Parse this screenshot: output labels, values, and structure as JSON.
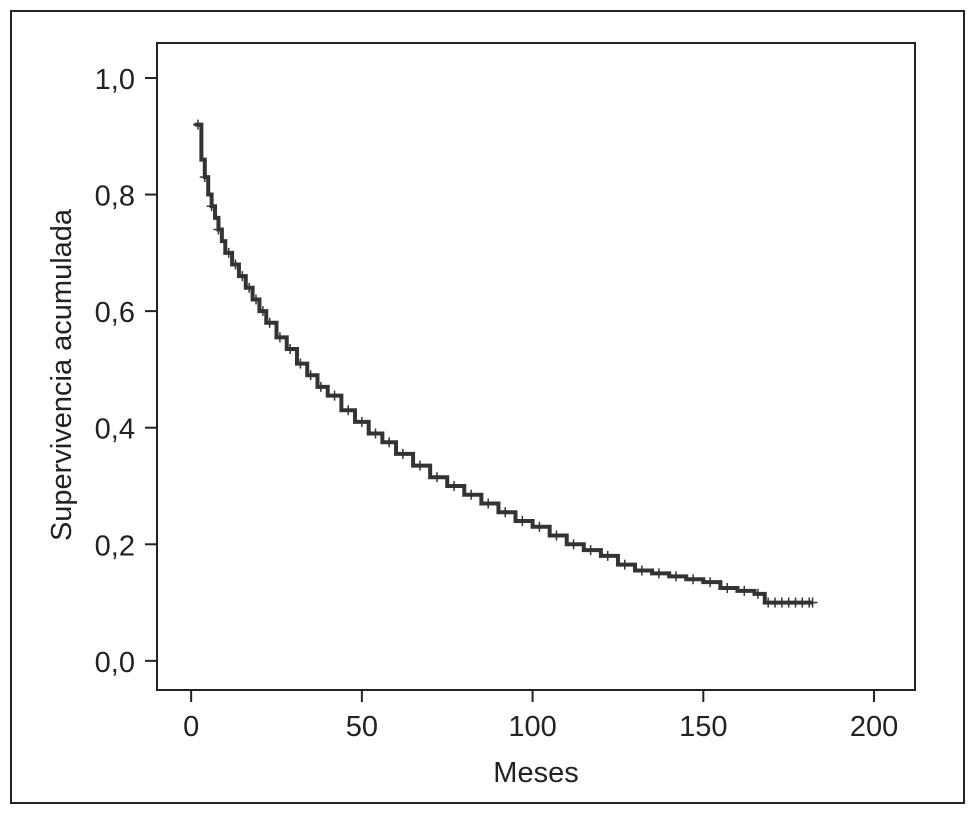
{
  "chart_data": {
    "type": "line",
    "subtype": "kaplan-meier-survival-curve",
    "title": "",
    "xlabel": "Meses",
    "ylabel": "Supervivencia acumulada",
    "xlim": [
      -10,
      212
    ],
    "ylim": [
      -0.05,
      1.06
    ],
    "xticks": [
      0,
      50,
      100,
      150,
      200
    ],
    "xtick_labels": [
      "0",
      "50",
      "100",
      "150",
      "200"
    ],
    "yticks": [
      0.0,
      0.2,
      0.4,
      0.6,
      0.8,
      1.0
    ],
    "ytick_labels": [
      "0,0",
      "0,2",
      "0,4",
      "0,6",
      "0,8",
      "1,0"
    ],
    "grid": false,
    "legend": "none",
    "line_color": "#333333",
    "censor_marker": "+",
    "series": [
      {
        "style": "step",
        "x": [
          1,
          3,
          4,
          5,
          6,
          7,
          8,
          9,
          10,
          12,
          14,
          16,
          18,
          20,
          22,
          25,
          28,
          31,
          34,
          37,
          40,
          44,
          48,
          52,
          56,
          60,
          65,
          70,
          75,
          80,
          85,
          90,
          95,
          100,
          105,
          110,
          115,
          120,
          125,
          130,
          135,
          140,
          145,
          150,
          155,
          160,
          165,
          168,
          172,
          176,
          180,
          182
        ],
        "y": [
          0.92,
          0.86,
          0.83,
          0.8,
          0.78,
          0.76,
          0.74,
          0.72,
          0.7,
          0.68,
          0.66,
          0.64,
          0.62,
          0.6,
          0.58,
          0.555,
          0.535,
          0.51,
          0.49,
          0.47,
          0.455,
          0.43,
          0.41,
          0.39,
          0.375,
          0.355,
          0.335,
          0.315,
          0.3,
          0.285,
          0.27,
          0.255,
          0.24,
          0.23,
          0.215,
          0.2,
          0.19,
          0.18,
          0.165,
          0.155,
          0.15,
          0.145,
          0.14,
          0.135,
          0.125,
          0.12,
          0.115,
          0.1,
          0.1,
          0.1,
          0.1,
          0.1
        ]
      }
    ],
    "censor_times": [
      2,
      4,
      6,
      8,
      11,
      13,
      15,
      17,
      19,
      21,
      23,
      26,
      29,
      32,
      35,
      38,
      42,
      46,
      50,
      54,
      58,
      62,
      67,
      72,
      77,
      82,
      87,
      92,
      97,
      102,
      107,
      112,
      117,
      122,
      127,
      132,
      137,
      142,
      147,
      152,
      157,
      162,
      166,
      169,
      171,
      173,
      175,
      177,
      179,
      181,
      182
    ]
  }
}
